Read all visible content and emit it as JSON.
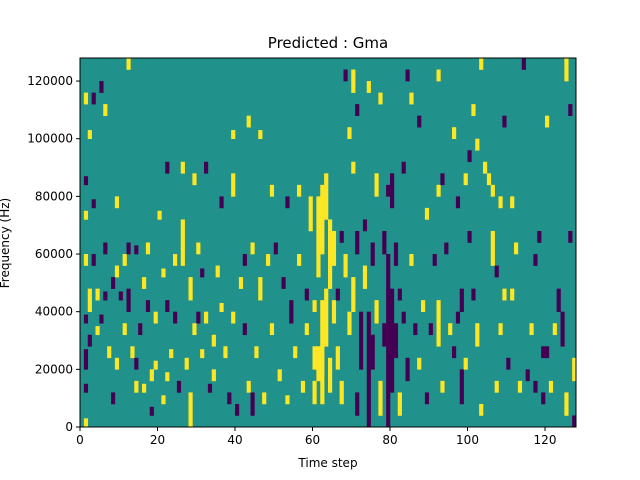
{
  "chart_data": {
    "type": "heatmap",
    "title": "Predicted : Gma",
    "xlabel": "Time step",
    "ylabel": "Frequency (Hz)",
    "xlim": [
      0,
      128
    ],
    "ylim": [
      0,
      128000
    ],
    "x_ticks": [
      0,
      20,
      40,
      60,
      80,
      100,
      120
    ],
    "y_ticks": [
      0,
      20000,
      40000,
      60000,
      80000,
      100000,
      120000
    ],
    "y_tick_labels": [
      "0",
      "20000",
      "40000",
      "60000",
      "80000",
      "100000",
      "120000"
    ],
    "grid": false,
    "legend": "none",
    "n_cols": 128,
    "n_rows": 128,
    "value_levels": [
      -1,
      0,
      1
    ],
    "level_colors": {
      "-1": "#440154",
      "0": "#21918c",
      "1": "#fde725"
    },
    "background_value": 0,
    "cells_description": "Sparse cells; each entry [time_step_start, freq_start_hz, time_steps_wide, freq_hz_tall, value]",
    "cells": [
      [
        1,
        112000,
        1,
        4000,
        1
      ],
      [
        1,
        84000,
        1,
        3000,
        -1
      ],
      [
        1,
        72000,
        1,
        3000,
        1
      ],
      [
        1,
        56000,
        1,
        4000,
        1
      ],
      [
        1,
        36000,
        1,
        3000,
        -1
      ],
      [
        1,
        20000,
        1,
        7000,
        -1
      ],
      [
        1,
        12000,
        1,
        3000,
        -1
      ],
      [
        1,
        0,
        1,
        3000,
        1
      ],
      [
        2,
        100000,
        1,
        3000,
        1
      ],
      [
        2,
        40000,
        1,
        8000,
        1
      ],
      [
        2,
        28000,
        1,
        4000,
        -1
      ],
      [
        3,
        112000,
        1,
        4000,
        -1
      ],
      [
        3,
        76000,
        1,
        3000,
        -1
      ],
      [
        3,
        56000,
        1,
        4000,
        -1
      ],
      [
        4,
        44000,
        1,
        4000,
        1
      ],
      [
        4,
        32000,
        1,
        3000,
        1
      ],
      [
        5,
        116000,
        1,
        4000,
        -1
      ],
      [
        5,
        36000,
        1,
        3000,
        -1
      ],
      [
        6,
        108000,
        1,
        4000,
        1
      ],
      [
        6,
        60000,
        1,
        4000,
        -1
      ],
      [
        6,
        44000,
        1,
        3000,
        -1
      ],
      [
        7,
        24000,
        1,
        4000,
        1
      ],
      [
        8,
        48000,
        1,
        4000,
        -1
      ],
      [
        8,
        8000,
        1,
        4000,
        -1
      ],
      [
        9,
        76000,
        1,
        4000,
        1
      ],
      [
        9,
        52000,
        1,
        4000,
        1
      ],
      [
        9,
        20000,
        1,
        4000,
        1
      ],
      [
        10,
        44000,
        1,
        3000,
        -1
      ],
      [
        11,
        56000,
        1,
        4000,
        1
      ],
      [
        11,
        32000,
        1,
        4000,
        1
      ],
      [
        12,
        124000,
        1,
        4000,
        1
      ],
      [
        12,
        60000,
        1,
        4000,
        -1
      ],
      [
        12,
        40000,
        1,
        8000,
        -1
      ],
      [
        13,
        24000,
        1,
        4000,
        1
      ],
      [
        14,
        60000,
        1,
        3000,
        -1
      ],
      [
        14,
        20000,
        1,
        4000,
        -1
      ],
      [
        14,
        12000,
        1,
        4000,
        1
      ],
      [
        15,
        32000,
        1,
        4000,
        -1
      ],
      [
        16,
        48000,
        1,
        4000,
        1
      ],
      [
        16,
        12000,
        1,
        3000,
        1
      ],
      [
        17,
        60000,
        1,
        4000,
        1
      ],
      [
        17,
        40000,
        1,
        4000,
        -1
      ],
      [
        18,
        16000,
        1,
        4000,
        1
      ],
      [
        18,
        4000,
        1,
        3000,
        -1
      ],
      [
        19,
        36000,
        1,
        4000,
        1
      ],
      [
        19,
        20000,
        1,
        3000,
        1
      ],
      [
        20,
        72000,
        1,
        3000,
        1
      ],
      [
        21,
        52000,
        1,
        3000,
        1
      ],
      [
        21,
        8000,
        1,
        3000,
        1
      ],
      [
        22,
        88000,
        1,
        4000,
        -1
      ],
      [
        22,
        40000,
        1,
        4000,
        -1
      ],
      [
        22,
        16000,
        1,
        3000,
        1
      ],
      [
        23,
        24000,
        1,
        3000,
        1
      ],
      [
        24,
        56000,
        1,
        4000,
        1
      ],
      [
        24,
        36000,
        1,
        4000,
        -1
      ],
      [
        25,
        12000,
        1,
        4000,
        -1
      ],
      [
        26,
        88000,
        1,
        4000,
        1
      ],
      [
        26,
        56000,
        1,
        16000,
        1
      ],
      [
        27,
        20000,
        1,
        4000,
        1
      ],
      [
        28,
        0,
        1,
        12000,
        1
      ],
      [
        28,
        44000,
        1,
        8000,
        1
      ],
      [
        29,
        84000,
        1,
        4000,
        1
      ],
      [
        29,
        32000,
        1,
        4000,
        1
      ],
      [
        30,
        60000,
        1,
        4000,
        1
      ],
      [
        30,
        36000,
        1,
        4000,
        -1
      ],
      [
        31,
        52000,
        1,
        3000,
        -1
      ],
      [
        31,
        24000,
        1,
        3000,
        1
      ],
      [
        32,
        88000,
        1,
        4000,
        -1
      ],
      [
        32,
        36000,
        1,
        4000,
        1
      ],
      [
        33,
        12000,
        1,
        3000,
        -1
      ],
      [
        34,
        16000,
        1,
        4000,
        1
      ],
      [
        34,
        28000,
        1,
        4000,
        1
      ],
      [
        35,
        52000,
        1,
        4000,
        1
      ],
      [
        36,
        76000,
        1,
        4000,
        -1
      ],
      [
        36,
        40000,
        1,
        3000,
        1
      ],
      [
        37,
        24000,
        1,
        4000,
        1
      ],
      [
        38,
        8000,
        1,
        4000,
        -1
      ],
      [
        39,
        100000,
        1,
        3000,
        1
      ],
      [
        39,
        80000,
        1,
        8000,
        1
      ],
      [
        39,
        36000,
        1,
        4000,
        1
      ],
      [
        40,
        4000,
        1,
        4000,
        -1
      ],
      [
        41,
        48000,
        1,
        4000,
        1
      ],
      [
        42,
        32000,
        1,
        4000,
        -1
      ],
      [
        42,
        56000,
        1,
        4000,
        -1
      ],
      [
        43,
        104000,
        1,
        4000,
        1
      ],
      [
        43,
        12000,
        1,
        4000,
        1
      ],
      [
        44,
        4000,
        1,
        8000,
        -1
      ],
      [
        44,
        60000,
        1,
        4000,
        1
      ],
      [
        45,
        24000,
        1,
        4000,
        1
      ],
      [
        46,
        100000,
        1,
        3000,
        1
      ],
      [
        46,
        44000,
        1,
        8000,
        1
      ],
      [
        47,
        8000,
        1,
        4000,
        1
      ],
      [
        48,
        56000,
        1,
        4000,
        1
      ],
      [
        49,
        80000,
        1,
        4000,
        1
      ],
      [
        49,
        32000,
        1,
        4000,
        1
      ],
      [
        50,
        60000,
        1,
        4000,
        -1
      ],
      [
        51,
        16000,
        1,
        4000,
        1
      ],
      [
        52,
        48000,
        1,
        4000,
        -1
      ],
      [
        53,
        76000,
        1,
        4000,
        -1
      ],
      [
        53,
        8000,
        1,
        3000,
        1
      ],
      [
        54,
        36000,
        1,
        8000,
        -1
      ],
      [
        55,
        24000,
        1,
        4000,
        1
      ],
      [
        56,
        80000,
        1,
        4000,
        1
      ],
      [
        56,
        56000,
        1,
        4000,
        1
      ],
      [
        57,
        12000,
        1,
        4000,
        1
      ],
      [
        58,
        44000,
        1,
        4000,
        -1
      ],
      [
        58,
        32000,
        1,
        4000,
        1
      ],
      [
        59,
        68000,
        1,
        12000,
        1
      ],
      [
        60,
        40000,
        1,
        4000,
        1
      ],
      [
        60,
        20000,
        1,
        8000,
        1
      ],
      [
        60,
        8000,
        1,
        8000,
        1
      ],
      [
        61,
        52000,
        1,
        28000,
        1
      ],
      [
        61,
        16000,
        1,
        12000,
        1
      ],
      [
        62,
        60000,
        1,
        24000,
        1
      ],
      [
        62,
        8000,
        1,
        36000,
        1
      ],
      [
        63,
        72000,
        1,
        16000,
        1
      ],
      [
        63,
        28000,
        1,
        20000,
        1
      ],
      [
        64,
        48000,
        1,
        24000,
        1
      ],
      [
        64,
        12000,
        1,
        12000,
        1
      ],
      [
        65,
        56000,
        1,
        12000,
        1
      ],
      [
        65,
        36000,
        1,
        8000,
        1
      ],
      [
        66,
        44000,
        1,
        4000,
        -1
      ],
      [
        66,
        20000,
        1,
        8000,
        1
      ],
      [
        67,
        64000,
        1,
        4000,
        -1
      ],
      [
        67,
        8000,
        1,
        8000,
        1
      ],
      [
        68,
        120000,
        1,
        4000,
        -1
      ],
      [
        68,
        52000,
        1,
        8000,
        1
      ],
      [
        69,
        100000,
        1,
        4000,
        1
      ],
      [
        69,
        32000,
        1,
        8000,
        1
      ],
      [
        70,
        116000,
        1,
        8000,
        1
      ],
      [
        70,
        88000,
        1,
        4000,
        1
      ],
      [
        70,
        40000,
        1,
        12000,
        1
      ],
      [
        71,
        108000,
        1,
        4000,
        -1
      ],
      [
        71,
        60000,
        1,
        8000,
        -1
      ],
      [
        71,
        4000,
        1,
        8000,
        -1
      ],
      [
        72,
        20000,
        1,
        20000,
        -1
      ],
      [
        73,
        48000,
        1,
        8000,
        1
      ],
      [
        73,
        68000,
        1,
        4000,
        -1
      ],
      [
        74,
        0,
        1,
        40000,
        -1
      ],
      [
        74,
        116000,
        1,
        4000,
        1
      ],
      [
        75,
        56000,
        1,
        8000,
        -1
      ],
      [
        75,
        20000,
        1,
        12000,
        -1
      ],
      [
        76,
        80000,
        1,
        8000,
        1
      ],
      [
        76,
        36000,
        1,
        8000,
        1
      ],
      [
        77,
        4000,
        1,
        12000,
        1
      ],
      [
        77,
        112000,
        1,
        4000,
        1
      ],
      [
        78,
        60000,
        1,
        8000,
        -1
      ],
      [
        78,
        28000,
        1,
        8000,
        -1
      ],
      [
        79,
        0,
        1,
        60000,
        -1
      ],
      [
        79,
        80000,
        1,
        4000,
        -1
      ],
      [
        80,
        12000,
        1,
        36000,
        -1
      ],
      [
        80,
        76000,
        1,
        12000,
        -1
      ],
      [
        81,
        56000,
        1,
        8000,
        -1
      ],
      [
        81,
        24000,
        1,
        12000,
        -1
      ],
      [
        82,
        44000,
        1,
        4000,
        -1
      ],
      [
        82,
        4000,
        1,
        8000,
        1
      ],
      [
        83,
        88000,
        1,
        4000,
        -1
      ],
      [
        83,
        36000,
        1,
        4000,
        -1
      ],
      [
        84,
        120000,
        1,
        4000,
        -1
      ],
      [
        84,
        16000,
        1,
        8000,
        -1
      ],
      [
        85,
        112000,
        1,
        4000,
        1
      ],
      [
        85,
        56000,
        1,
        4000,
        1
      ],
      [
        86,
        32000,
        1,
        4000,
        -1
      ],
      [
        87,
        104000,
        1,
        4000,
        -1
      ],
      [
        87,
        20000,
        1,
        4000,
        1
      ],
      [
        88,
        40000,
        1,
        4000,
        1
      ],
      [
        89,
        72000,
        1,
        4000,
        1
      ],
      [
        89,
        8000,
        1,
        4000,
        -1
      ],
      [
        90,
        32000,
        1,
        4000,
        -1
      ],
      [
        91,
        56000,
        1,
        4000,
        -1
      ],
      [
        92,
        120000,
        1,
        4000,
        1
      ],
      [
        92,
        80000,
        1,
        4000,
        1
      ],
      [
        92,
        28000,
        1,
        16000,
        1
      ],
      [
        93,
        84000,
        1,
        4000,
        -1
      ],
      [
        93,
        12000,
        1,
        4000,
        1
      ],
      [
        94,
        60000,
        1,
        4000,
        -1
      ],
      [
        95,
        32000,
        1,
        4000,
        1
      ],
      [
        96,
        100000,
        1,
        4000,
        1
      ],
      [
        96,
        24000,
        1,
        4000,
        -1
      ],
      [
        97,
        76000,
        1,
        4000,
        -1
      ],
      [
        97,
        36000,
        1,
        4000,
        -1
      ],
      [
        98,
        40000,
        1,
        8000,
        -1
      ],
      [
        98,
        8000,
        1,
        12000,
        -1
      ],
      [
        99,
        84000,
        1,
        4000,
        1
      ],
      [
        99,
        20000,
        1,
        4000,
        1
      ],
      [
        100,
        92000,
        1,
        4000,
        -1
      ],
      [
        100,
        64000,
        1,
        4000,
        -1
      ],
      [
        101,
        108000,
        1,
        4000,
        1
      ],
      [
        101,
        44000,
        1,
        4000,
        -1
      ],
      [
        102,
        96000,
        1,
        4000,
        1
      ],
      [
        102,
        28000,
        1,
        8000,
        1
      ],
      [
        103,
        124000,
        1,
        4000,
        1
      ],
      [
        103,
        4000,
        1,
        4000,
        1
      ],
      [
        104,
        88000,
        1,
        4000,
        1
      ],
      [
        105,
        84000,
        1,
        4000,
        1
      ],
      [
        106,
        80000,
        1,
        4000,
        1
      ],
      [
        106,
        56000,
        1,
        12000,
        1
      ],
      [
        107,
        52000,
        1,
        4000,
        -1
      ],
      [
        107,
        12000,
        1,
        4000,
        1
      ],
      [
        108,
        76000,
        1,
        4000,
        1
      ],
      [
        108,
        32000,
        1,
        4000,
        1
      ],
      [
        109,
        104000,
        1,
        4000,
        -1
      ],
      [
        109,
        44000,
        1,
        4000,
        1
      ],
      [
        110,
        20000,
        1,
        4000,
        -1
      ],
      [
        111,
        76000,
        1,
        4000,
        1
      ],
      [
        111,
        44000,
        1,
        4000,
        1
      ],
      [
        112,
        60000,
        1,
        4000,
        1
      ],
      [
        113,
        12000,
        1,
        4000,
        1
      ],
      [
        114,
        124000,
        1,
        4000,
        -1
      ],
      [
        115,
        16000,
        1,
        4000,
        -1
      ],
      [
        116,
        32000,
        1,
        4000,
        1
      ],
      [
        117,
        56000,
        1,
        4000,
        -1
      ],
      [
        117,
        12000,
        1,
        4000,
        -1
      ],
      [
        118,
        64000,
        1,
        4000,
        -1
      ],
      [
        119,
        8000,
        1,
        4000,
        -1
      ],
      [
        119,
        24000,
        1,
        4000,
        -1
      ],
      [
        120,
        104000,
        1,
        4000,
        1
      ],
      [
        120,
        24000,
        1,
        4000,
        -1
      ],
      [
        121,
        12000,
        1,
        4000,
        1
      ],
      [
        122,
        32000,
        1,
        4000,
        1
      ],
      [
        123,
        40000,
        1,
        8000,
        -1
      ],
      [
        124,
        28000,
        1,
        12000,
        -1
      ],
      [
        125,
        120000,
        1,
        8000,
        1
      ],
      [
        125,
        4000,
        1,
        8000,
        1
      ],
      [
        126,
        108000,
        1,
        4000,
        -1
      ],
      [
        126,
        64000,
        1,
        4000,
        -1
      ],
      [
        127,
        16000,
        1,
        8000,
        1
      ],
      [
        127,
        0,
        1,
        4000,
        -1
      ]
    ]
  }
}
